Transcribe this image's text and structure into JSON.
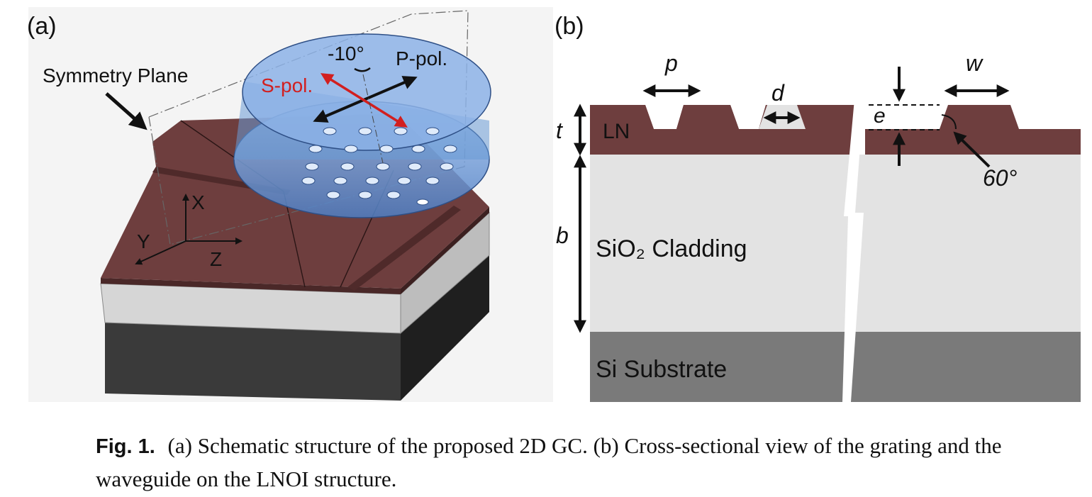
{
  "panel_a": {
    "label": "(a)",
    "symmetry_plane": "Symmetry Plane",
    "angle": "-10°",
    "p_pol": "P-pol.",
    "s_pol": "S-pol.",
    "axis_x": "X",
    "axis_y": "Y",
    "axis_z": "Z",
    "colors": {
      "ln": "#6e3e3e",
      "fiber": "#6a9ad6",
      "s_pol": "#d21f1f",
      "substrate": "#3a3a3a"
    }
  },
  "panel_b": {
    "label": "(b)",
    "p": "p",
    "d": "d",
    "w": "w",
    "e": "e",
    "t": "t",
    "b": "b",
    "ln": "LN",
    "angle": "60°",
    "cladding": "SiO₂ Cladding",
    "substrate": "Si Substrate",
    "colors": {
      "ln": "#6e3e3e",
      "cladding": "#e3e3e3",
      "substrate": "#7a7a7a"
    }
  },
  "caption": {
    "fig_label": "Fig. 1.",
    "text": "(a) Schematic structure of the proposed 2D GC. (b) Cross-sectional view of the grating and the waveguide on the LNOI structure."
  }
}
